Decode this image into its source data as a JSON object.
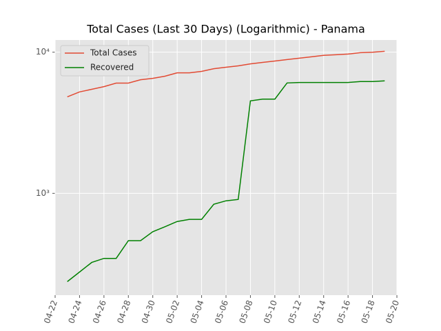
{
  "chart_data": {
    "type": "line",
    "title": "Total Cases (Last 30 Days) (Logarithmic) - Panama",
    "x": [
      "04-23",
      "04-24",
      "04-25",
      "04-26",
      "04-27",
      "04-28",
      "04-29",
      "04-30",
      "05-01",
      "05-02",
      "05-03",
      "05-04",
      "05-05",
      "05-06",
      "05-07",
      "05-08",
      "05-09",
      "05-10",
      "05-11",
      "05-12",
      "05-13",
      "05-14",
      "05-15",
      "05-16",
      "05-17",
      "05-18",
      "05-19"
    ],
    "series": [
      {
        "name": "Total Cases",
        "color": "#e24a33",
        "values": [
          4830,
          5230,
          5460,
          5700,
          6040,
          6040,
          6380,
          6530,
          6760,
          7140,
          7140,
          7310,
          7640,
          7820,
          8000,
          8270,
          8460,
          8660,
          8860,
          9070,
          9270,
          9490,
          9590,
          9700,
          9920,
          10000,
          10140
        ]
      },
      {
        "name": "Recovered",
        "color": "#008000",
        "values": [
          237,
          277,
          324,
          346,
          346,
          462,
          462,
          535,
          580,
          632,
          654,
          654,
          837,
          885,
          905,
          4520,
          4650,
          4650,
          6050,
          6100,
          6100,
          6100,
          6100,
          6100,
          6200,
          6200,
          6270
        ]
      }
    ],
    "xlim": [
      "04-22",
      "05-20"
    ],
    "xticks": [
      "04-22",
      "04-24",
      "04-26",
      "04-28",
      "04-30",
      "05-02",
      "05-04",
      "05-06",
      "05-08",
      "05-10",
      "05-12",
      "05-14",
      "05-16",
      "05-18",
      "05-20"
    ],
    "ylim": [
      190,
      12200
    ],
    "yticks": [
      {
        "value": 1000,
        "label": "10³"
      },
      {
        "value": 10000,
        "label": "10⁴"
      }
    ],
    "log_y": true,
    "grid": true,
    "legend": "upper left"
  }
}
